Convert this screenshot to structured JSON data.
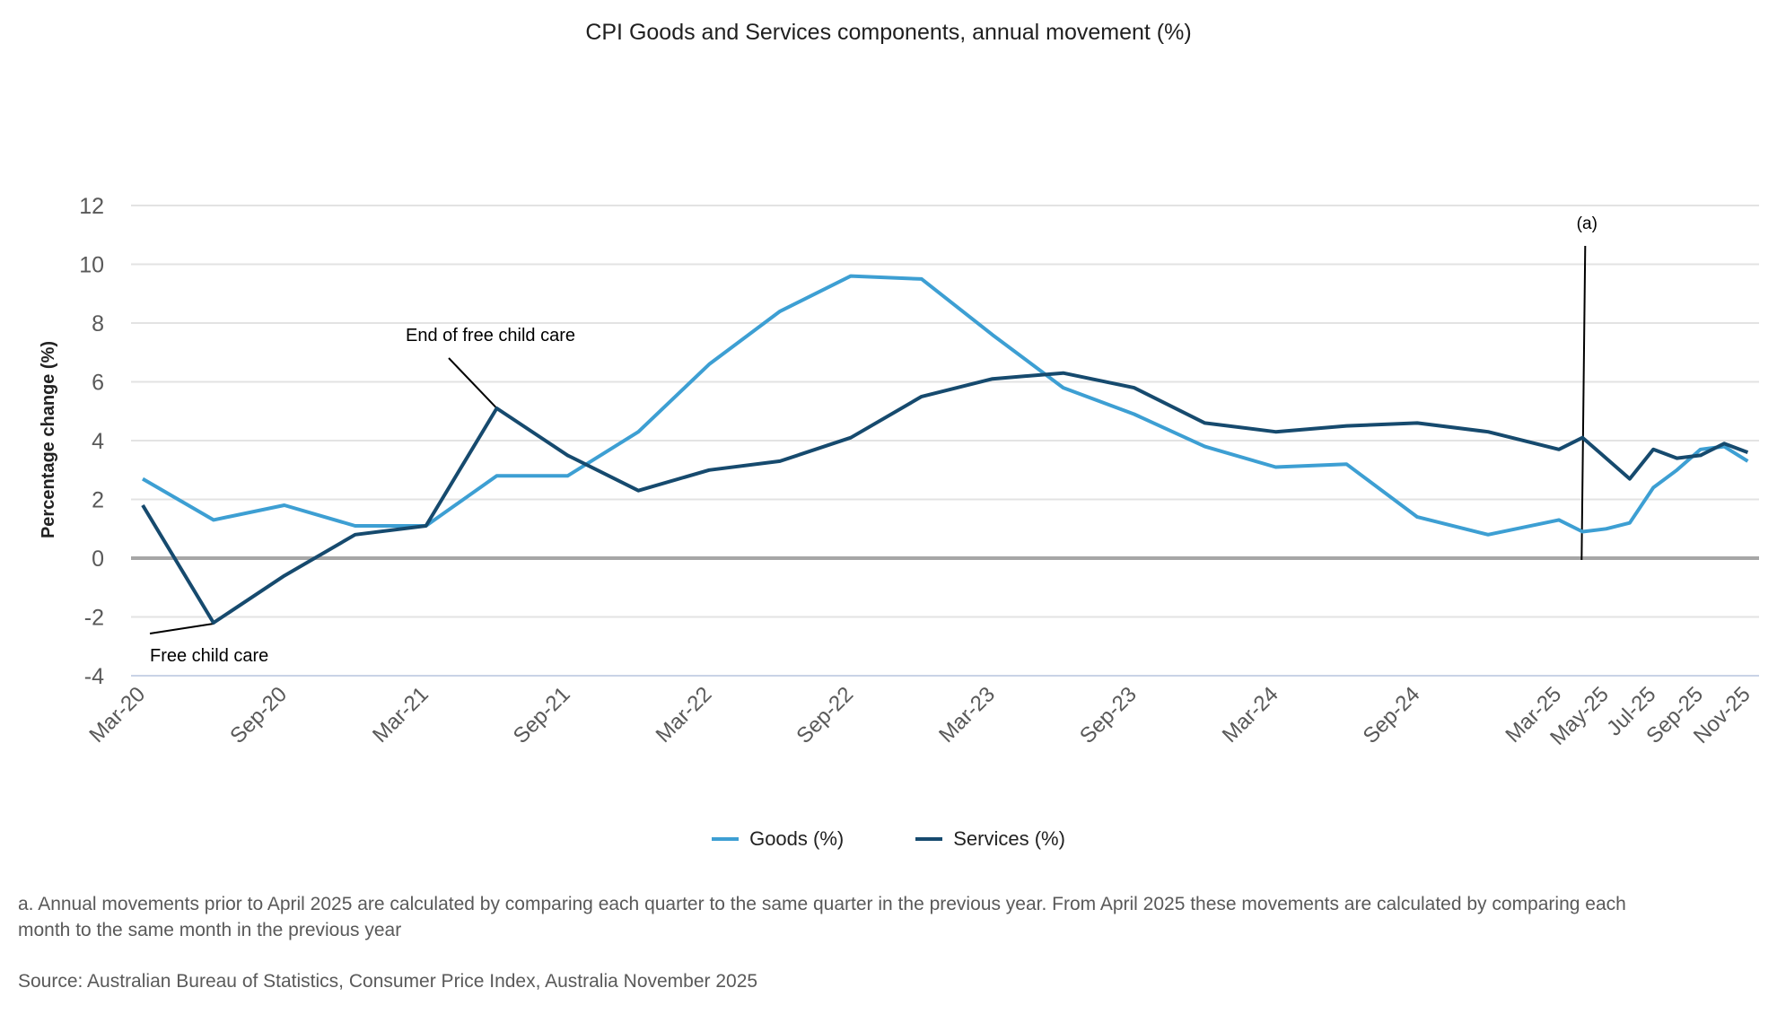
{
  "chart_data": {
    "type": "line",
    "title": "CPI Goods and Services components, annual movement (%)",
    "xlabel": "",
    "ylabel": "Percentage change (%)",
    "ylim": [
      -4,
      12
    ],
    "yticks": [
      12,
      10,
      8,
      6,
      4,
      2,
      0,
      -2,
      -4
    ],
    "grid": true,
    "legend_position": "bottom",
    "x": [
      "Mar-20",
      "Jun-20",
      "Sep-20",
      "Dec-20",
      "Mar-21",
      "Jun-21",
      "Sep-21",
      "Dec-21",
      "Mar-22",
      "Jun-22",
      "Sep-22",
      "Dec-22",
      "Mar-23",
      "Jun-23",
      "Sep-23",
      "Dec-23",
      "Mar-24",
      "Jun-24",
      "Sep-24",
      "Dec-24",
      "Mar-25",
      "Apr-25",
      "May-25",
      "Jun-25",
      "Jul-25",
      "Aug-25",
      "Sep-25",
      "Oct-25",
      "Nov-25"
    ],
    "x_month_index": [
      0,
      3,
      6,
      9,
      12,
      15,
      18,
      21,
      24,
      27,
      30,
      33,
      36,
      39,
      42,
      45,
      48,
      51,
      54,
      57,
      60,
      61,
      62,
      63,
      64,
      65,
      66,
      67,
      68
    ],
    "xtick_labels": [
      {
        "label": "Mar-20",
        "month_index": 0
      },
      {
        "label": "Sep-20",
        "month_index": 6
      },
      {
        "label": "Mar-21",
        "month_index": 12
      },
      {
        "label": "Sep-21",
        "month_index": 18
      },
      {
        "label": "Mar-22",
        "month_index": 24
      },
      {
        "label": "Sep-22",
        "month_index": 30
      },
      {
        "label": "Mar-23",
        "month_index": 36
      },
      {
        "label": "Sep-23",
        "month_index": 42
      },
      {
        "label": "Mar-24",
        "month_index": 48
      },
      {
        "label": "Sep-24",
        "month_index": 54
      },
      {
        "label": "Mar-25",
        "month_index": 60
      },
      {
        "label": "May-25",
        "month_index": 62
      },
      {
        "label": "Jul-25",
        "month_index": 64
      },
      {
        "label": "Sep-25",
        "month_index": 66
      },
      {
        "label": "Nov-25",
        "month_index": 68
      }
    ],
    "series": [
      {
        "name": "Goods (%)",
        "color": "#3d9fd3",
        "values": [
          2.7,
          1.3,
          1.8,
          1.1,
          1.1,
          2.8,
          2.8,
          4.3,
          6.6,
          8.4,
          9.6,
          9.5,
          7.6,
          5.8,
          4.9,
          3.8,
          3.1,
          3.2,
          1.4,
          0.8,
          1.3,
          0.9,
          1.0,
          1.2,
          2.4,
          3.0,
          3.7,
          3.8,
          3.3
        ]
      },
      {
        "name": "Services (%)",
        "color": "#164a6e",
        "values": [
          1.8,
          -2.2,
          -0.6,
          0.8,
          1.1,
          5.1,
          3.5,
          2.3,
          3.0,
          3.3,
          4.1,
          5.5,
          6.1,
          6.3,
          5.8,
          4.6,
          4.3,
          4.5,
          4.6,
          4.3,
          3.7,
          4.1,
          3.4,
          2.7,
          3.7,
          3.4,
          3.5,
          3.9,
          3.6
        ]
      }
    ],
    "annotations": [
      {
        "text": "Free child care",
        "target": "Services (%)",
        "at": "Jun-20"
      },
      {
        "text": "End of free child care",
        "target": "Services (%)",
        "at": "Jun-21"
      },
      {
        "text": "(a)",
        "type": "vertical-line",
        "at_month_index": 61
      }
    ]
  },
  "legend": [
    {
      "label": "Goods (%)",
      "color": "#3d9fd3"
    },
    {
      "label": "Services (%)",
      "color": "#164a6e"
    }
  ],
  "footnote": "a. Annual movements prior to April 2025 are calculated by comparing each quarter to the same quarter in the previous year.  From April 2025 these movements are calculated by comparing each month to the same month in the previous year",
  "source": "Source: Australian Bureau of Statistics, Consumer Price Index, Australia November 2025"
}
